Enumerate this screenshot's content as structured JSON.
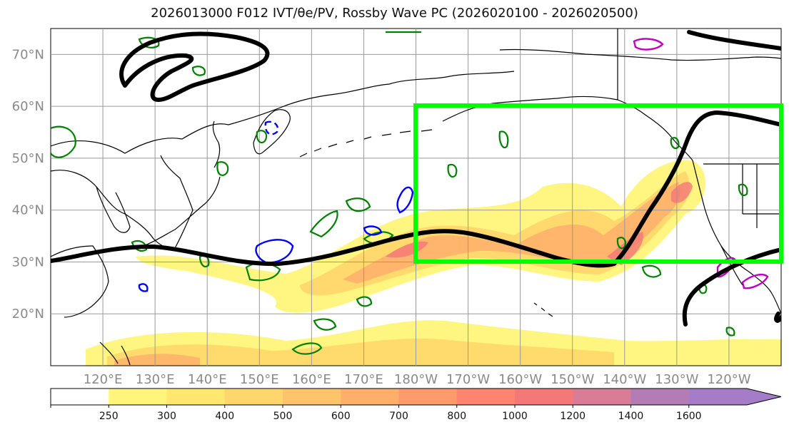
{
  "title": "2026013000 F012 IVT/θe/PV, Rossby Wave PC (2026020100 - 2026020500)",
  "map": {
    "lat_labels": [
      "70°N",
      "60°N",
      "50°N",
      "40°N",
      "30°N",
      "20°N"
    ],
    "lat_values": [
      70,
      60,
      50,
      40,
      30,
      20
    ],
    "lon_labels": [
      "120°E",
      "130°E",
      "140°E",
      "150°E",
      "160°E",
      "170°E",
      "180°W",
      "170°W",
      "160°W",
      "150°W",
      "140°W",
      "130°W",
      "120°W"
    ],
    "lon_values": [
      120,
      130,
      140,
      150,
      160,
      170,
      180,
      190,
      200,
      210,
      220,
      230,
      240
    ],
    "lon_range": [
      110,
      250
    ],
    "lat_range": [
      10,
      75
    ],
    "region_box": {
      "lon": [
        180,
        250
      ],
      "lat": [
        30,
        60
      ],
      "color": "#00ff00"
    },
    "colors": {
      "coastline": "#000000",
      "rossby_wave": "#000000",
      "theta_e_contour": "#008000",
      "pv_contour_blue": "#0000ff",
      "pv_contour_magenta": "#c000c0",
      "grid": "#999999"
    }
  },
  "colorbar": {
    "levels": [
      "250",
      "300",
      "400",
      "500",
      "600",
      "700",
      "800",
      "1000",
      "1200",
      "1400",
      "1600"
    ],
    "colors": [
      "#ffffff",
      "#fff57a",
      "#ffe770",
      "#ffd66b",
      "#ffc46b",
      "#ffae6b",
      "#ff9a6b",
      "#ff8470",
      "#f47878",
      "#d97c98",
      "#b47cb4",
      "#a57cc8"
    ]
  }
}
